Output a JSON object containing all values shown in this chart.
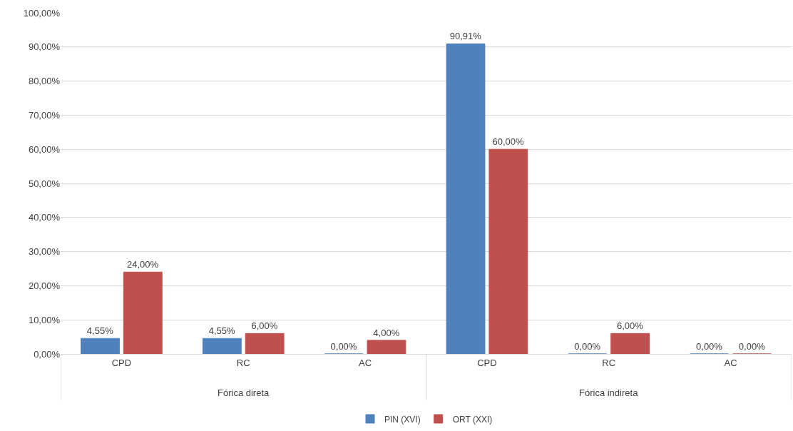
{
  "chart_data": {
    "type": "bar",
    "categories": [
      "CPD",
      "RC",
      "AC",
      "CPD",
      "RC",
      "AC"
    ],
    "series": [
      {
        "name": "PIN (XVI)",
        "color": "#4f81bd",
        "values": [
          4.55,
          4.55,
          0,
          90.91,
          0,
          0
        ],
        "value_labels": [
          "4,55%",
          "4,55%",
          "0,00%",
          "90,91%",
          "0,00%",
          "0,00%"
        ]
      },
      {
        "name": "ORT (XXI)",
        "color": "#c0504d",
        "values": [
          24,
          6,
          4,
          60,
          6,
          0
        ],
        "value_labels": [
          "24,00%",
          "6,00%",
          "4,00%",
          "60,00%",
          "6,00%",
          "0,00%"
        ]
      }
    ],
    "ylim": [
      0,
      100
    ],
    "yticks": [
      {
        "value": 0,
        "label": "0,00%"
      },
      {
        "value": 10,
        "label": "10,00%"
      },
      {
        "value": 20,
        "label": "20,00%"
      },
      {
        "value": 30,
        "label": "30,00%"
      },
      {
        "value": 40,
        "label": "40,00%"
      },
      {
        "value": 50,
        "label": "50,00%"
      },
      {
        "value": 60,
        "label": "60,00%"
      },
      {
        "value": 70,
        "label": "70,00%"
      },
      {
        "value": 80,
        "label": "80,00%"
      },
      {
        "value": 90,
        "label": "90,00%"
      },
      {
        "value": 100,
        "label": "100,00%"
      }
    ],
    "annotations": [
      "Fórica direta",
      "Fórica indireta"
    ],
    "grid": "y",
    "legend": "bottom"
  }
}
